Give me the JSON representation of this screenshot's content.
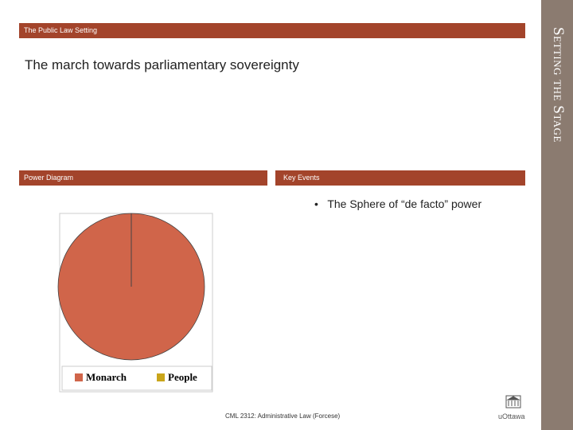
{
  "header": {
    "section": "The Public Law Setting",
    "title": "The march towards parliamentary sovereignty",
    "sidebar": "Setting the Stage"
  },
  "panels": {
    "left": "Power Diagram",
    "right": "Key Events"
  },
  "bullets": [
    "The Sphere of “de facto” power"
  ],
  "footer": "CML 2312: Administrative Law (Forcese)",
  "logo": "uOttawa",
  "chart_data": {
    "type": "pie",
    "categories": [
      "Monarch",
      "People"
    ],
    "values": [
      100,
      0
    ],
    "colors": [
      "#d0654a",
      "#c9a51a"
    ],
    "legend": "bottom"
  }
}
